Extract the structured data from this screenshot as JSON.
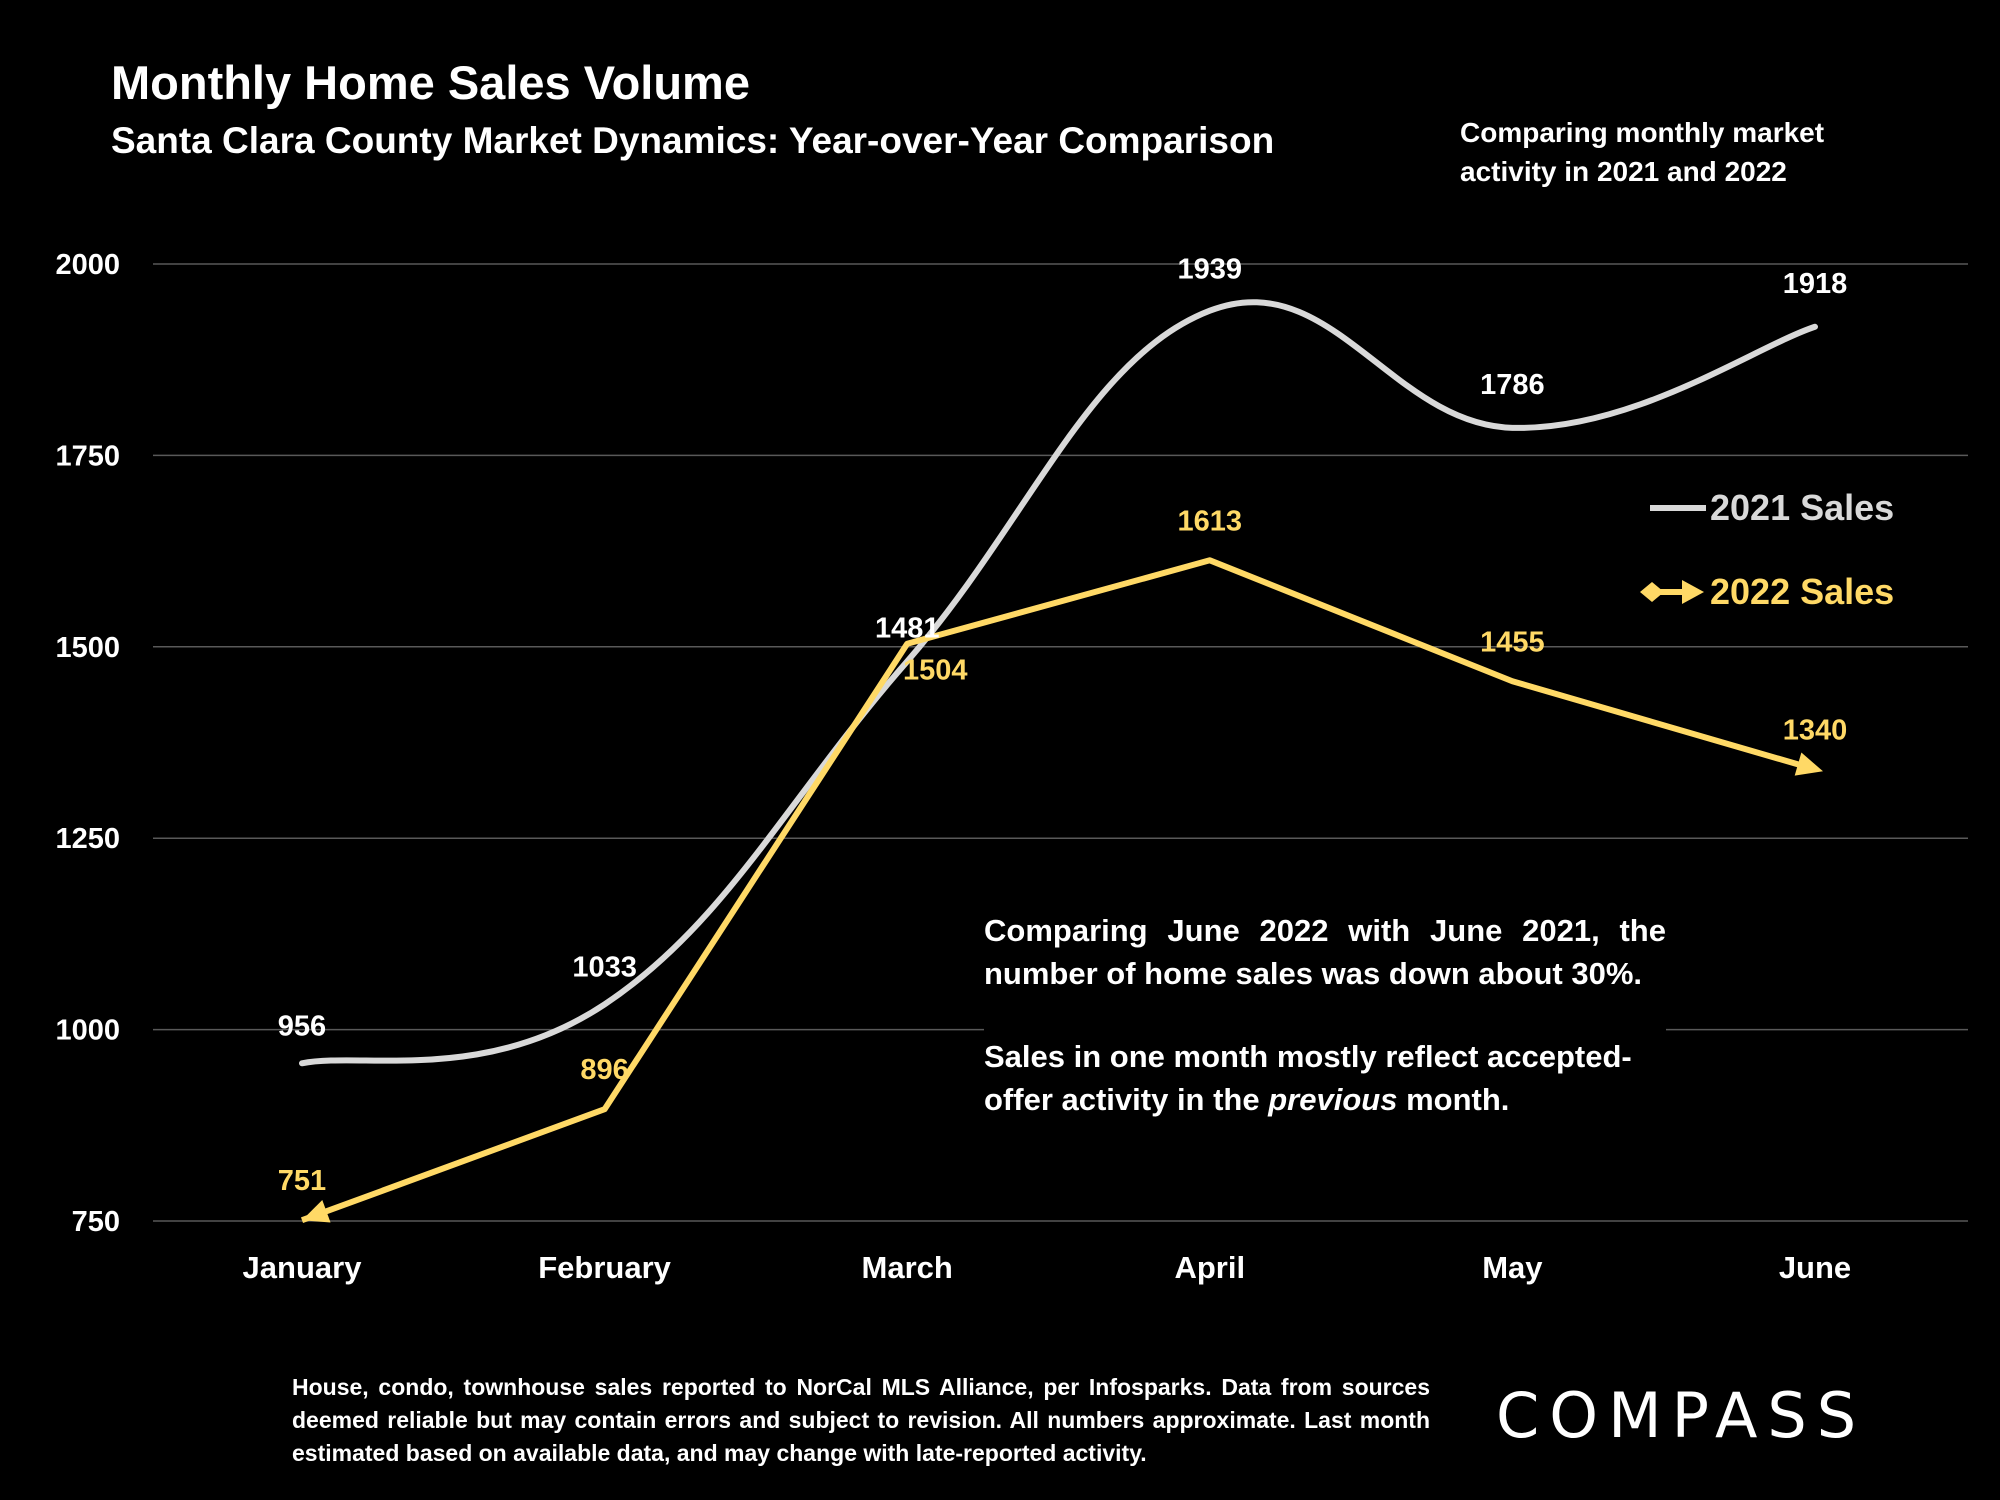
{
  "header": {
    "title": "Monthly Home Sales Volume",
    "subtitle": "Santa Clara County Market Dynamics: Year-over-Year Comparison",
    "side_note": "Comparing monthly market activity in 2021 and 2022"
  },
  "annotation": {
    "line1_prefix": "Comparing June 2022 with June 2021, the number of home sales was down about 30%.",
    "line2_before": "Sales in one month mostly reflect accepted-offer activity in the ",
    "line2_italic": "previous",
    "line2_after": " month."
  },
  "footnote": "House, condo, townhouse sales reported to NorCal MLS Alliance, per Infosparks. Data from sources deemed reliable but may contain errors and subject to revision. All numbers approximate. Last month estimated based on available data, and may change with late-reported activity.",
  "logo": {
    "text": "COMPASS"
  },
  "colors": {
    "background": "#000000",
    "series_2021": "#d9d9d9",
    "series_2022": "#ffd966",
    "grid": "#595959"
  },
  "chart_data": {
    "type": "line",
    "categories": [
      "January",
      "February",
      "March",
      "April",
      "May",
      "June"
    ],
    "ylim": [
      750,
      2000
    ],
    "yticks": [
      750,
      1000,
      1250,
      1500,
      1750,
      2000
    ],
    "grid": true,
    "legend_position": "right",
    "series": [
      {
        "name": "2021 Sales",
        "values": [
          956,
          1033,
          1481,
          1939,
          1786,
          1918
        ],
        "smooth": true,
        "marker": "none"
      },
      {
        "name": "2022 Sales",
        "values": [
          751,
          896,
          1504,
          1613,
          1455,
          1340
        ],
        "smooth": false,
        "marker": "arrow"
      }
    ]
  }
}
